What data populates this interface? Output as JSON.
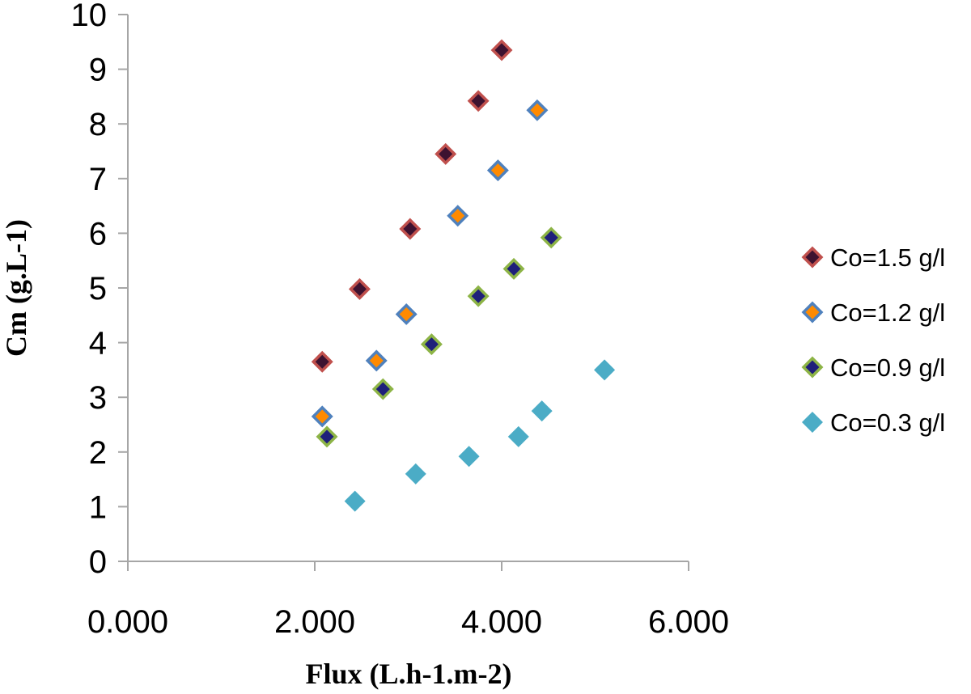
{
  "chart_data": {
    "type": "scatter",
    "title": "",
    "xlabel": "Flux (L.h-1.m-2)",
    "ylabel": "Cm (g.L-1)",
    "xlim": [
      0,
      6
    ],
    "ylim": [
      0,
      10
    ],
    "x_ticks": [
      "0.000",
      "2.000",
      "4.000",
      "6.000"
    ],
    "y_ticks": [
      "0",
      "1",
      "2",
      "3",
      "4",
      "5",
      "6",
      "7",
      "8",
      "9",
      "10"
    ],
    "grid": false,
    "legend_position": "right",
    "series": [
      {
        "name": "Co=1.5 g/l",
        "marker": "diamond-bordered",
        "fill": "#3d1230",
        "border": "#c0504d",
        "points": [
          [
            2.08,
            3.65
          ],
          [
            2.48,
            4.98
          ],
          [
            3.02,
            6.08
          ],
          [
            3.4,
            7.45
          ],
          [
            3.75,
            8.42
          ],
          [
            4.0,
            9.35
          ]
        ]
      },
      {
        "name": "Co=1.2 g/l",
        "marker": "diamond-bordered",
        "fill": "#ff8a00",
        "border": "#4f81bd",
        "points": [
          [
            2.08,
            2.65
          ],
          [
            2.66,
            3.67
          ],
          [
            2.98,
            4.52
          ],
          [
            3.53,
            6.32
          ],
          [
            3.96,
            7.15
          ],
          [
            4.38,
            8.25
          ]
        ]
      },
      {
        "name": "Co=0.9 g/l",
        "marker": "diamond-bordered",
        "fill": "#1f1f7a",
        "border": "#8db446",
        "points": [
          [
            2.13,
            2.28
          ],
          [
            2.73,
            3.15
          ],
          [
            3.25,
            3.97
          ],
          [
            3.75,
            4.85
          ],
          [
            4.13,
            5.35
          ],
          [
            4.53,
            5.92
          ]
        ]
      },
      {
        "name": "Co=0.3 g/l",
        "marker": "diamond",
        "fill": "#4bacc6",
        "border": "#4bacc6",
        "points": [
          [
            2.43,
            1.1
          ],
          [
            3.08,
            1.6
          ],
          [
            3.65,
            1.92
          ],
          [
            4.18,
            2.28
          ],
          [
            4.43,
            2.75
          ],
          [
            5.1,
            3.5
          ]
        ]
      }
    ]
  }
}
